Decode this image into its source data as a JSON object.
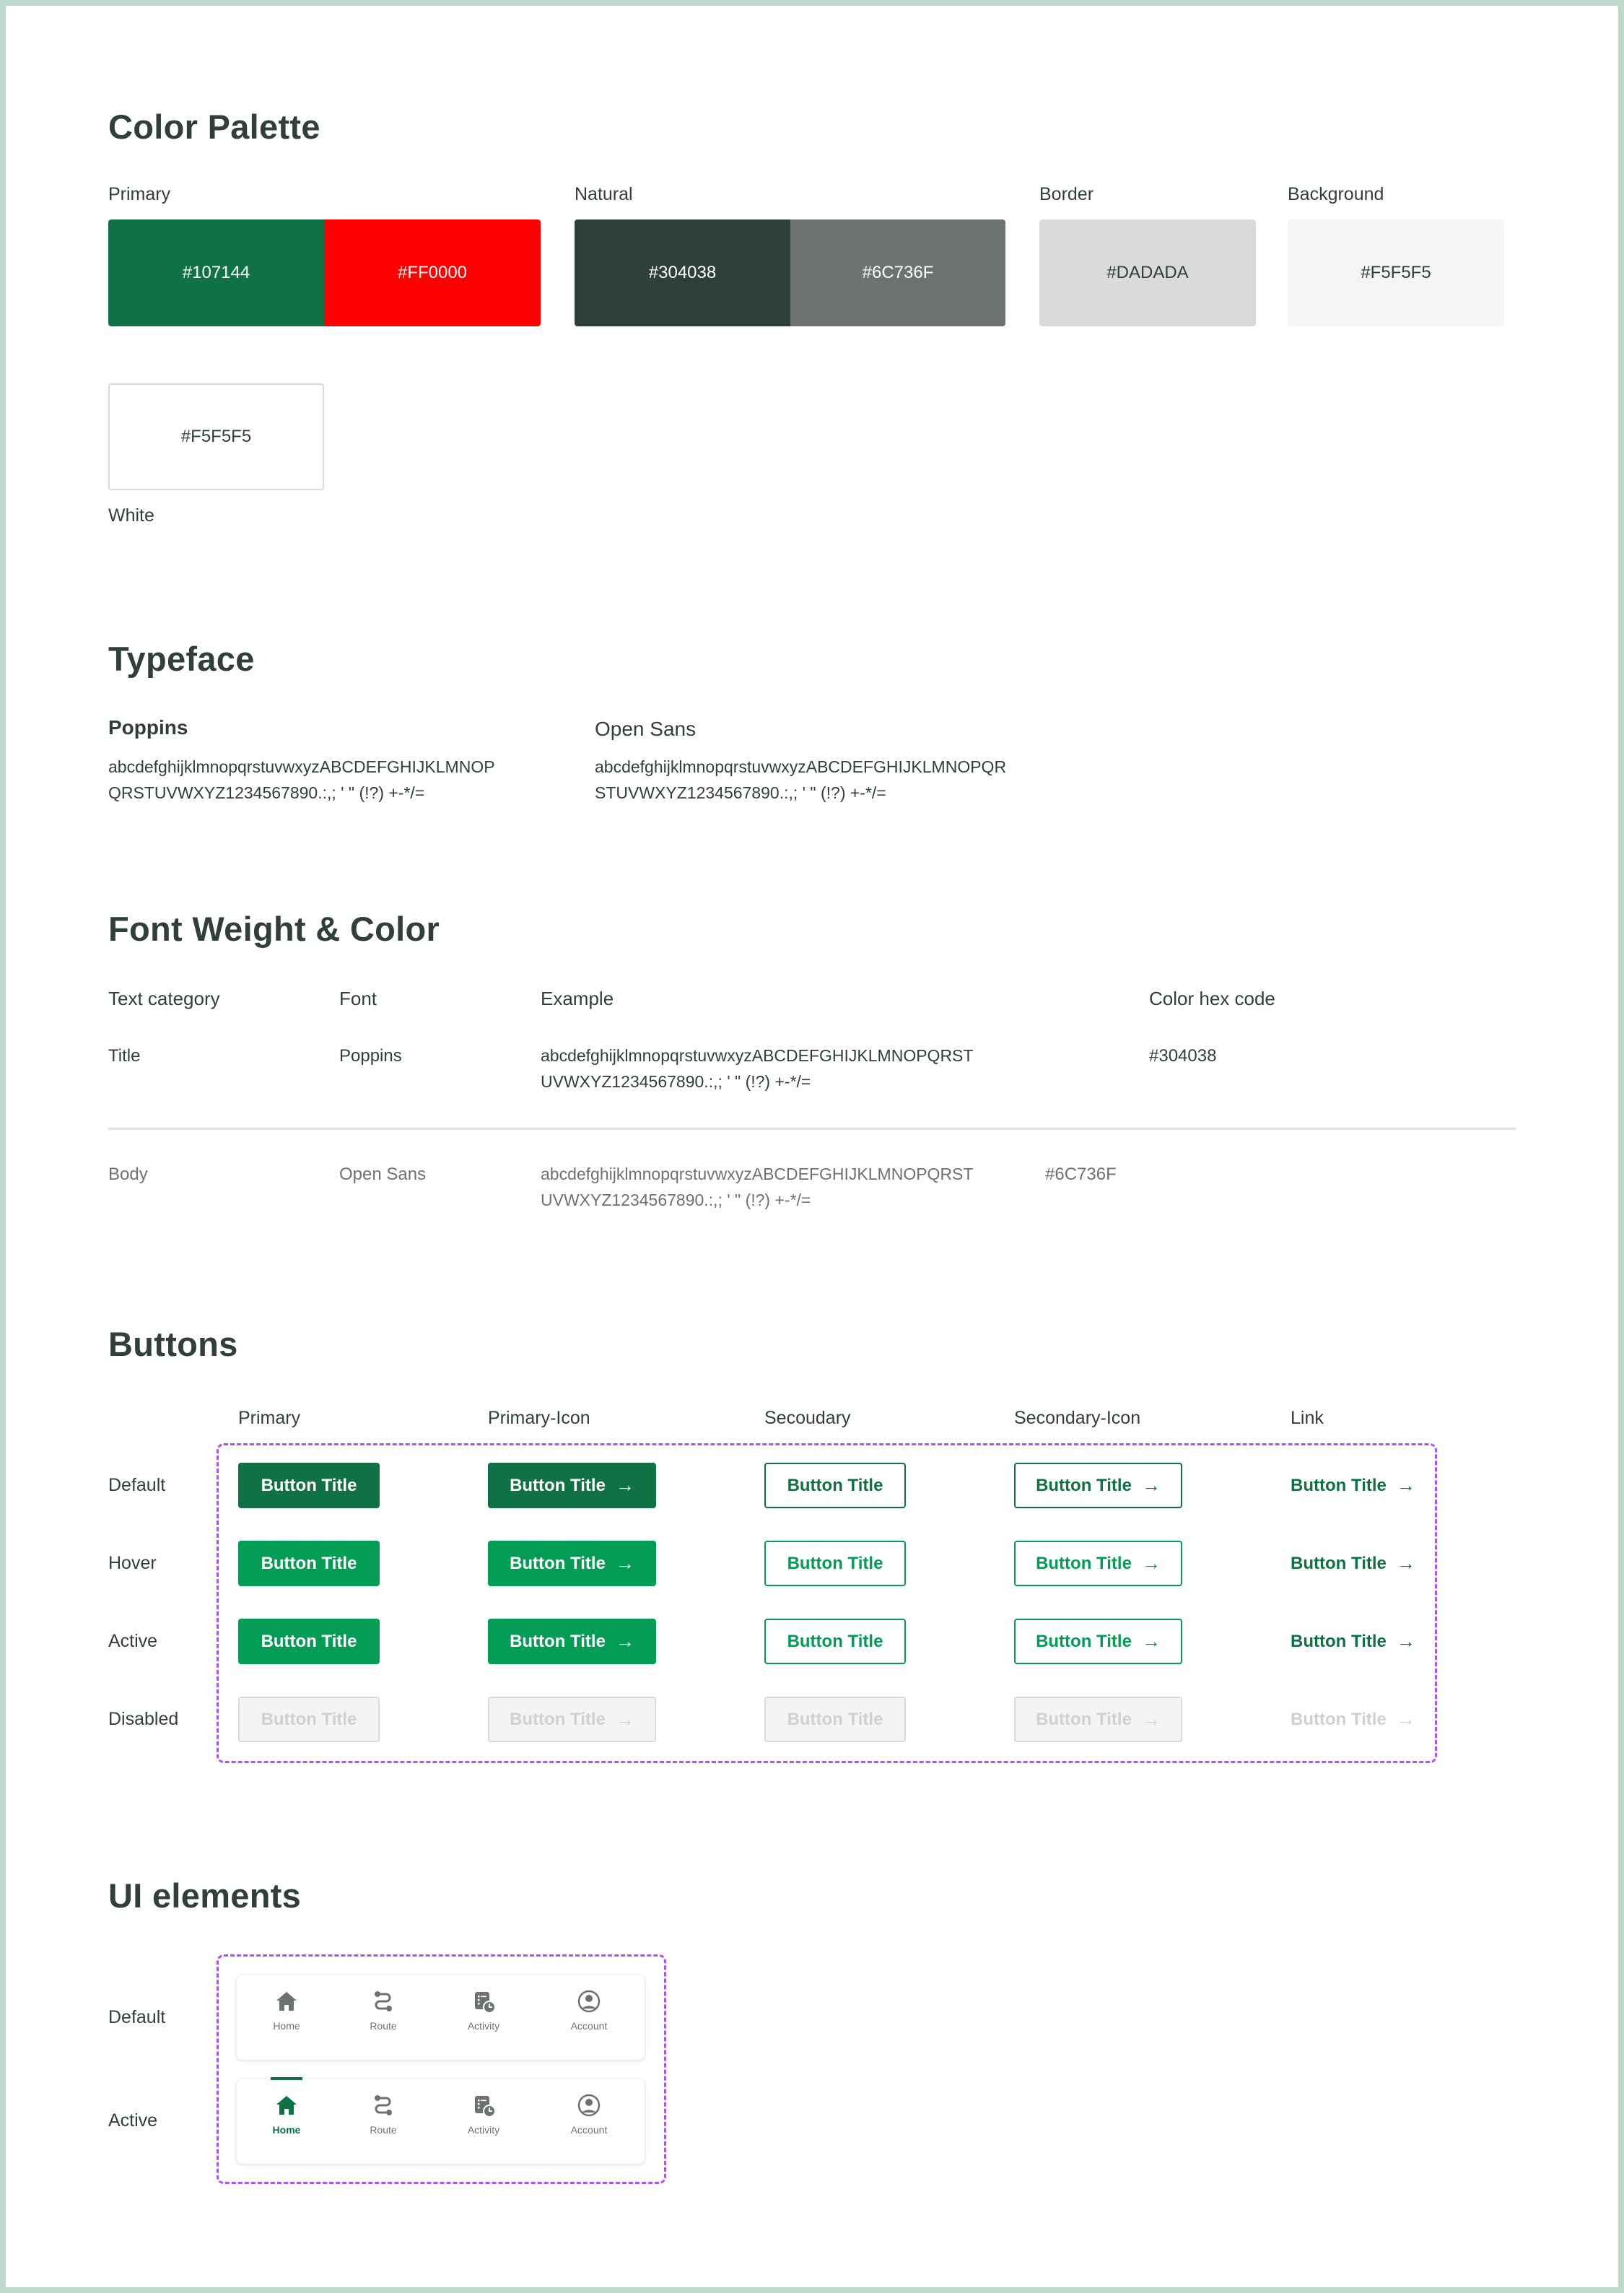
{
  "color_palette": {
    "title": "Color Palette",
    "groups": [
      {
        "label": "Primary",
        "swatches": [
          {
            "hex": "#107144"
          },
          {
            "hex": "#FF0000"
          }
        ]
      },
      {
        "label": "Natural",
        "swatches": [
          {
            "hex": "#304038"
          },
          {
            "hex": "#6C736F"
          }
        ]
      },
      {
        "label": "Border",
        "swatches": [
          {
            "hex": "#DADADA"
          }
        ]
      },
      {
        "label": "Background",
        "swatches": [
          {
            "hex": "#F5F5F5"
          }
        ]
      }
    ],
    "white": {
      "label": "White",
      "hex": "#F5F5F5"
    }
  },
  "typeface": {
    "title": "Typeface",
    "fonts": [
      {
        "name": "Poppins",
        "line1": "abcdefghijklmnopqrstuvwxyzABCDEFGHIJKLMNOP",
        "line2": "QRSTUVWXYZ1234567890.:,; ' \" (!?) +-*/="
      },
      {
        "name": "Open Sans",
        "line1": "abcdefghijklmnopqrstuvwxyzABCDEFGHIJKLMNOPQR",
        "line2": "STUVWXYZ1234567890.:,; ' \" (!?) +-*/="
      }
    ]
  },
  "font_weight": {
    "title": "Font Weight & Color",
    "headers": [
      "Text category",
      "Font",
      "Example",
      "Color hex code"
    ],
    "rows": [
      {
        "category": "Title",
        "font": "Poppins",
        "line1": "abcdefghijklmnopqrstuvwxyzABCDEFGHIJKLMNOPQRST",
        "line2": "UVWXYZ1234567890.:,; ' \" (!?) +-*/=",
        "hex": "#304038"
      },
      {
        "category": "Body",
        "font": "Open Sans",
        "line1": "abcdefghijklmnopqrstuvwxyzABCDEFGHIJKLMNOPQRST",
        "line2": "UVWXYZ1234567890.:,; ' \" (!?) +-*/=",
        "hex": "#6C736F"
      }
    ]
  },
  "buttons": {
    "title": "Buttons",
    "columns": [
      "Primary",
      "Primary-Icon",
      "Secoudary",
      "Secondary-Icon",
      "Link"
    ],
    "states": [
      "Default",
      "Hover",
      "Active",
      "Disabled"
    ],
    "label": "Button Title",
    "arrow_icon": "arrow-right-icon",
    "colors": {
      "default": "#107144",
      "hover": "#039C55",
      "active": "#039C55",
      "disabled_bg": "#F4F4F4",
      "disabled_border": "#DADADA",
      "disabled_text": "#D0D0D0"
    }
  },
  "ui_elements": {
    "title": "UI elements",
    "states": [
      "Default",
      "Active"
    ],
    "nav_items": [
      {
        "label": "Home",
        "icon": "home-icon"
      },
      {
        "label": "Route",
        "icon": "route-icon"
      },
      {
        "label": "Activity",
        "icon": "activity-icon"
      },
      {
        "label": "Account",
        "icon": "account-icon"
      }
    ],
    "active_index": 0,
    "active_color": "#107144",
    "inactive_color": "#6C736F"
  }
}
